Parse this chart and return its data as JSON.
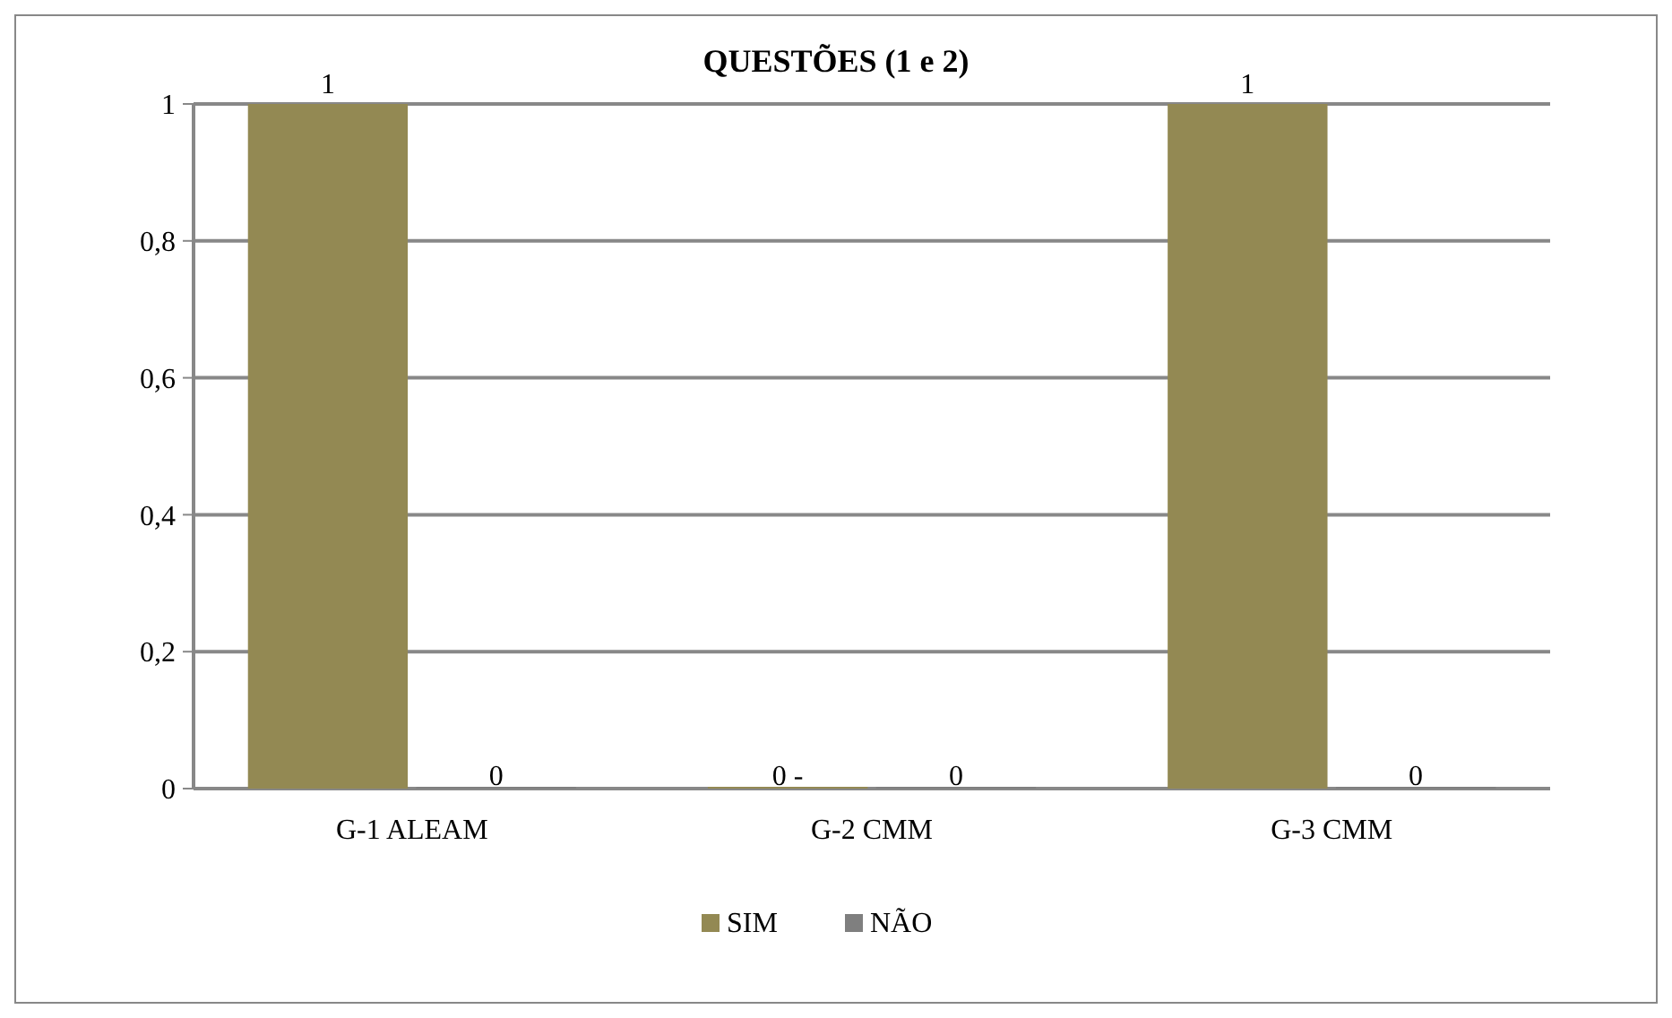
{
  "chart_data": {
    "type": "bar",
    "title": "QUESTÕES  (1 e 2)",
    "categories": [
      "G-1 ALEAM",
      "G-2 CMM",
      "G-3 CMM"
    ],
    "series": [
      {
        "name": "SIM",
        "color": "#938953",
        "values": [
          1,
          0,
          1
        ],
        "value_labels": [
          "1",
          "0  -",
          "1"
        ]
      },
      {
        "name": "NÃO",
        "color": "#7f7f7f",
        "values": [
          0,
          0,
          0
        ],
        "value_labels": [
          "0",
          "0",
          "0"
        ]
      }
    ],
    "ylim": [
      0,
      1
    ],
    "yticks": [
      0,
      {
        "value": 0.2,
        "label": "0,2"
      },
      {
        "value": 0.4,
        "label": "0,4"
      },
      {
        "value": 0.6,
        "label": "0,6"
      },
      {
        "value": 0.8,
        "label": "0,8"
      },
      1
    ],
    "grid": "y",
    "legend": "bottom"
  }
}
